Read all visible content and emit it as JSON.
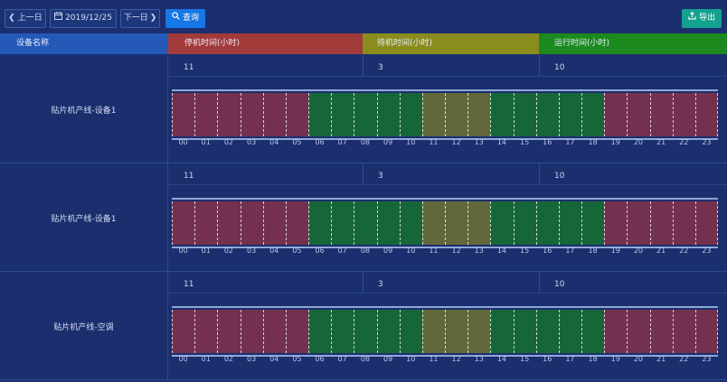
{
  "toolbar": {
    "prev_day": "上一日",
    "date": "2019/12/25",
    "next_day": "下一日",
    "query": "查询",
    "export": "导出"
  },
  "header": {
    "device_name": "设备名称",
    "stop_time": "停机时间(小时)",
    "standby_time": "待机时间(小时)",
    "run_time": "运行时间(小时)"
  },
  "colors": {
    "stop": "#a23a3a",
    "standby": "#8a8c1e",
    "run": "#1c8a1f",
    "seg_stop": "#73304f",
    "seg_run": "#17663a",
    "seg_standby": "#63683a"
  },
  "rows": [
    {
      "device": "贴片机产线-设备1",
      "stop": "11",
      "standby": "3",
      "run": "10"
    },
    {
      "device": "贴片机产线-设备1",
      "stop": "11",
      "standby": "3",
      "run": "10"
    },
    {
      "device": "贴片机产线-空调",
      "stop": "11",
      "standby": "3",
      "run": "10"
    }
  ],
  "hours": [
    "00",
    "01",
    "02",
    "03",
    "04",
    "05",
    "06",
    "07",
    "08",
    "09",
    "10",
    "11",
    "12",
    "13",
    "14",
    "15",
    "16",
    "17",
    "18",
    "19",
    "20",
    "21",
    "22",
    "23"
  ],
  "segments": [
    {
      "state": "stop",
      "start": 0,
      "end": 6
    },
    {
      "state": "run",
      "start": 6,
      "end": 11
    },
    {
      "state": "standby",
      "start": 11,
      "end": 14
    },
    {
      "state": "run",
      "start": 14,
      "end": 19
    },
    {
      "state": "stop",
      "start": 19,
      "end": 24
    }
  ]
}
